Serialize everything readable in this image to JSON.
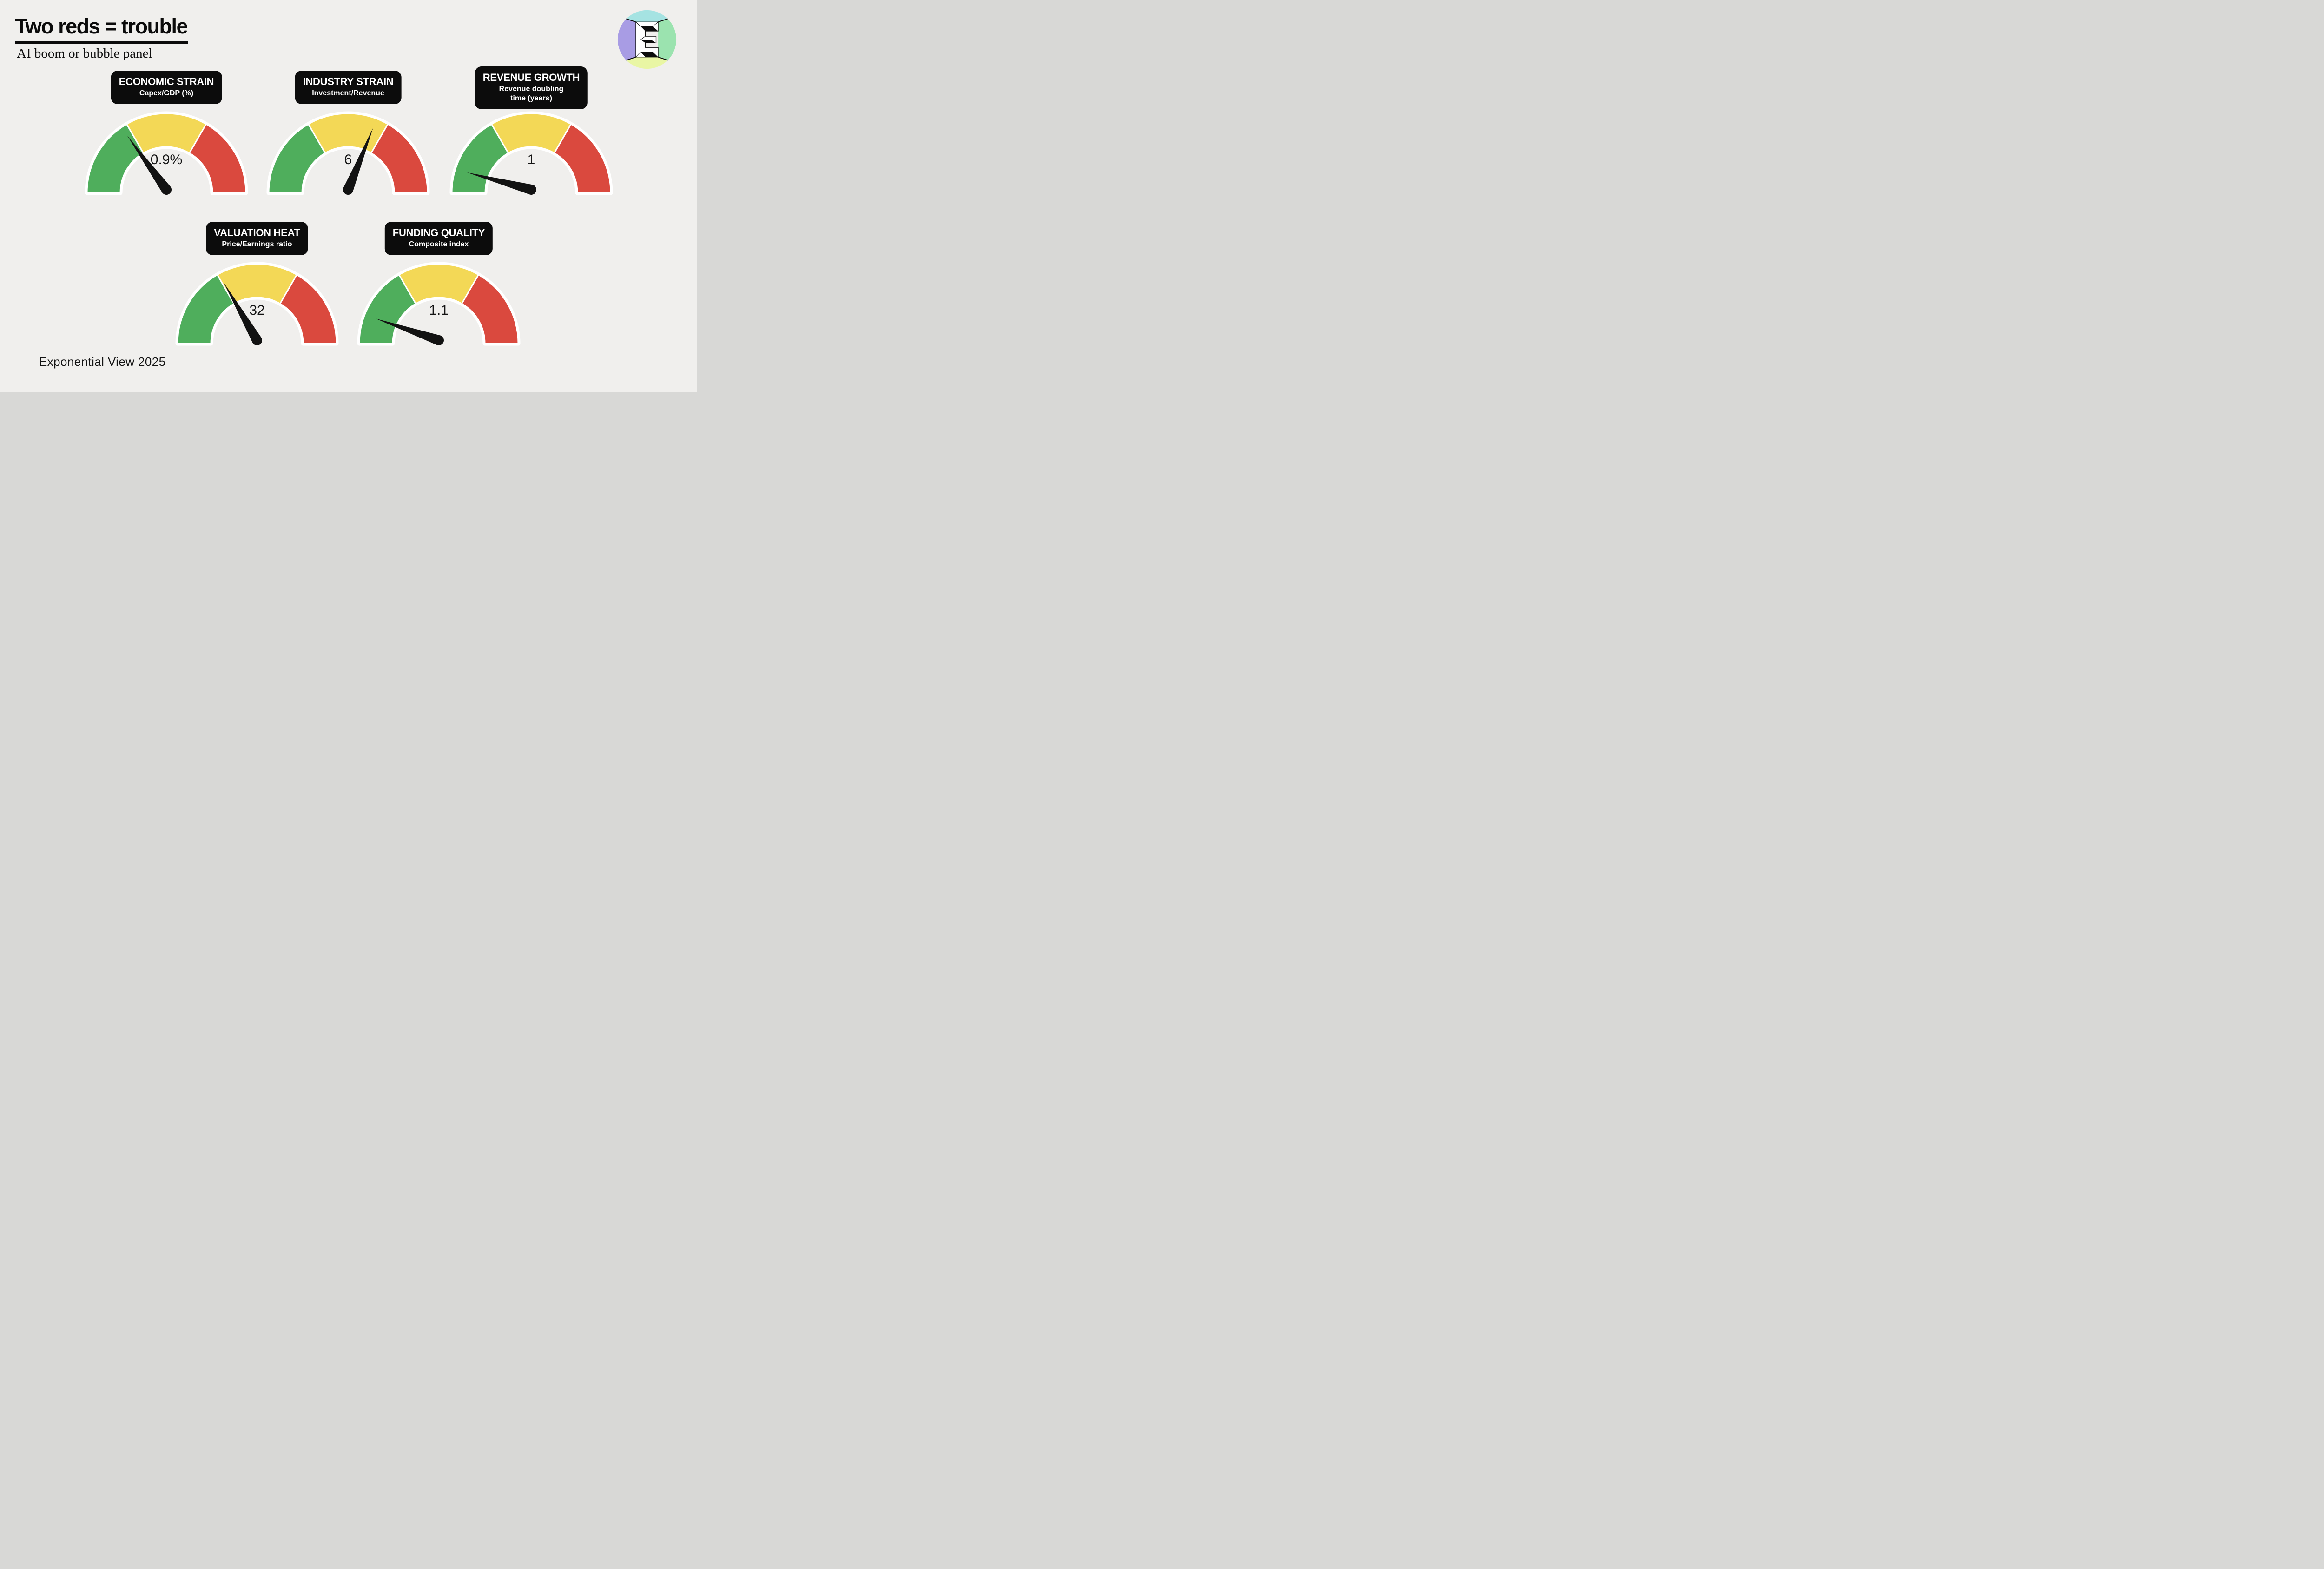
{
  "page": {
    "background": "#f0efed"
  },
  "header": {
    "title": "Two reds = trouble",
    "subtitle": "AI boom or bubble panel"
  },
  "footer": {
    "credit": "Exponential View 2025"
  },
  "logo": {
    "name": "exponential-view-logo",
    "colors": {
      "top": "#a5e3e2",
      "right": "#9be3af",
      "bottom": "#e9f6a4",
      "left": "#a89ce4",
      "letter_plate": "#ffffff",
      "letter_ink": "#0d0d0d"
    }
  },
  "colors": {
    "green": "#4fae5c",
    "yellow": "#f3d856",
    "red": "#da493e",
    "needle": "#121212",
    "gauge_outline": "#ffffff",
    "badge_bg": "#0c0c0c",
    "badge_text": "#ffffff",
    "value_text": "#141414"
  },
  "chart_data": {
    "type": "gauge-panel",
    "title": "Two reds = trouble",
    "subtitle": "AI boom or bubble panel",
    "zone_layout": "semicircle, 180deg sweep, equal thirds",
    "zones": [
      {
        "name": "green",
        "from_deg": 180,
        "to_deg": 120
      },
      {
        "name": "yellow",
        "from_deg": 120,
        "to_deg": 60
      },
      {
        "name": "red",
        "from_deg": 60,
        "to_deg": 0
      }
    ],
    "gauges": [
      {
        "id": "economic-strain",
        "title": "ECONOMIC STRAIN",
        "subtitle": "Capex/GDP (%)",
        "value": "0.9%",
        "needle_angle_deg": 126,
        "needle_zone": "green"
      },
      {
        "id": "industry-strain",
        "title": "INDUSTRY STRAIN",
        "subtitle": "Investment/Revenue",
        "value": "6",
        "needle_angle_deg": 68,
        "needle_zone": "yellow"
      },
      {
        "id": "revenue-growth",
        "title": "REVENUE GROWTH",
        "subtitle": "Revenue doubling time (years)",
        "value": "1",
        "needle_angle_deg": 165,
        "needle_zone": "green"
      },
      {
        "id": "valuation-heat",
        "title": "VALUATION HEAT",
        "subtitle": "Price/Earnings ratio",
        "value": "32",
        "needle_angle_deg": 120,
        "needle_zone": "green-yellow boundary"
      },
      {
        "id": "funding-quality",
        "title": "FUNDING QUALITY",
        "subtitle": "Composite index",
        "value": "1.1",
        "needle_angle_deg": 161,
        "needle_zone": "green"
      }
    ]
  }
}
